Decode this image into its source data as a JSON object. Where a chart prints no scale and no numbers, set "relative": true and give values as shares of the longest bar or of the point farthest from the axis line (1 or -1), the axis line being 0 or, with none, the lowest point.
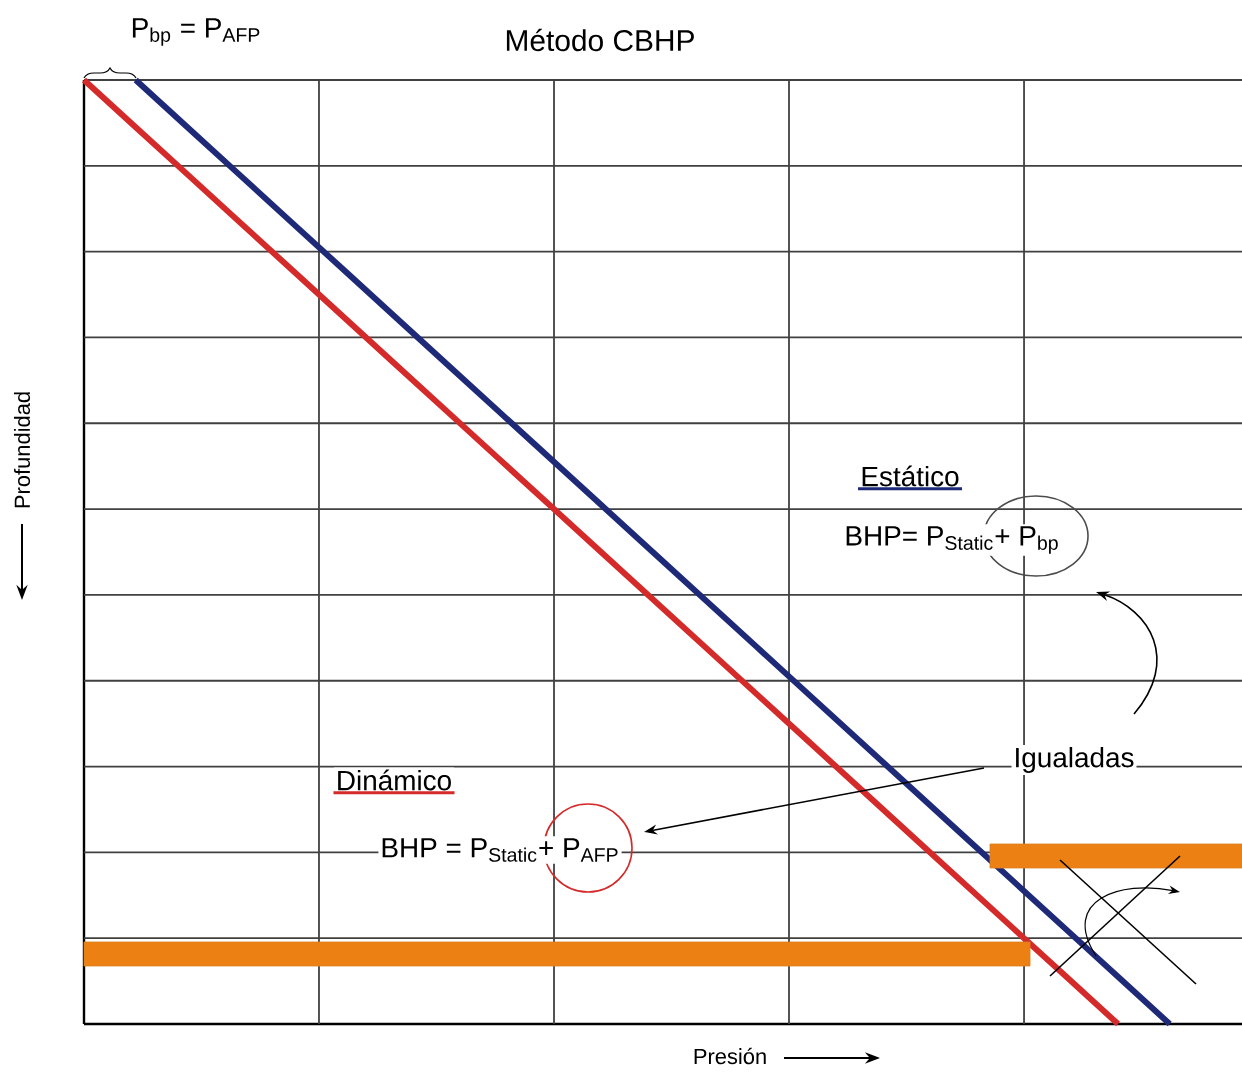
{
  "chart_data": {
    "type": "line",
    "title": "Método CBHP",
    "xlabel": "Presión",
    "ylabel": "Profundidad",
    "relative": true,
    "categories": [
      null,
      null,
      null,
      null,
      null,
      null,
      null,
      null,
      null,
      null,
      null,
      null,
      null,
      null,
      null,
      null,
      null,
      null,
      null,
      null,
      null,
      null
    ],
    "grid": true,
    "marker": "none",
    "line_style": "solid",
    "series": [
      {
        "color": "#d42a2a",
        "values": [
          1,
          0.95,
          0.9,
          0.85,
          0.8,
          0.75,
          0.7,
          0.65,
          0.6,
          0.55,
          0.5,
          0.45,
          0.4,
          0.35,
          0.3,
          0.25,
          0.2,
          0.15,
          0.1,
          0.05,
          0,
          null
        ]
      },
      {
        "color": "#1e2a78",
        "values": [
          null,
          1,
          0.95,
          0.9,
          0.85,
          0.8,
          0.75,
          0.7,
          0.65,
          0.6,
          0.55,
          0.5,
          0.45,
          0.4,
          0.35,
          0.3,
          0.25,
          0.2,
          0.15,
          0.1,
          0.05,
          0
        ]
      }
    ],
    "annotations": [
      "P$_{bp}$ = P$_{AFP}$",
      "Estático",
      "BHP= P$_{Static}$+ P$_{bp}$",
      "Igualadas",
      "Dinámico",
      "BHP = P$_{Static}$+ P$_{AFP}$"
    ]
  }
}
